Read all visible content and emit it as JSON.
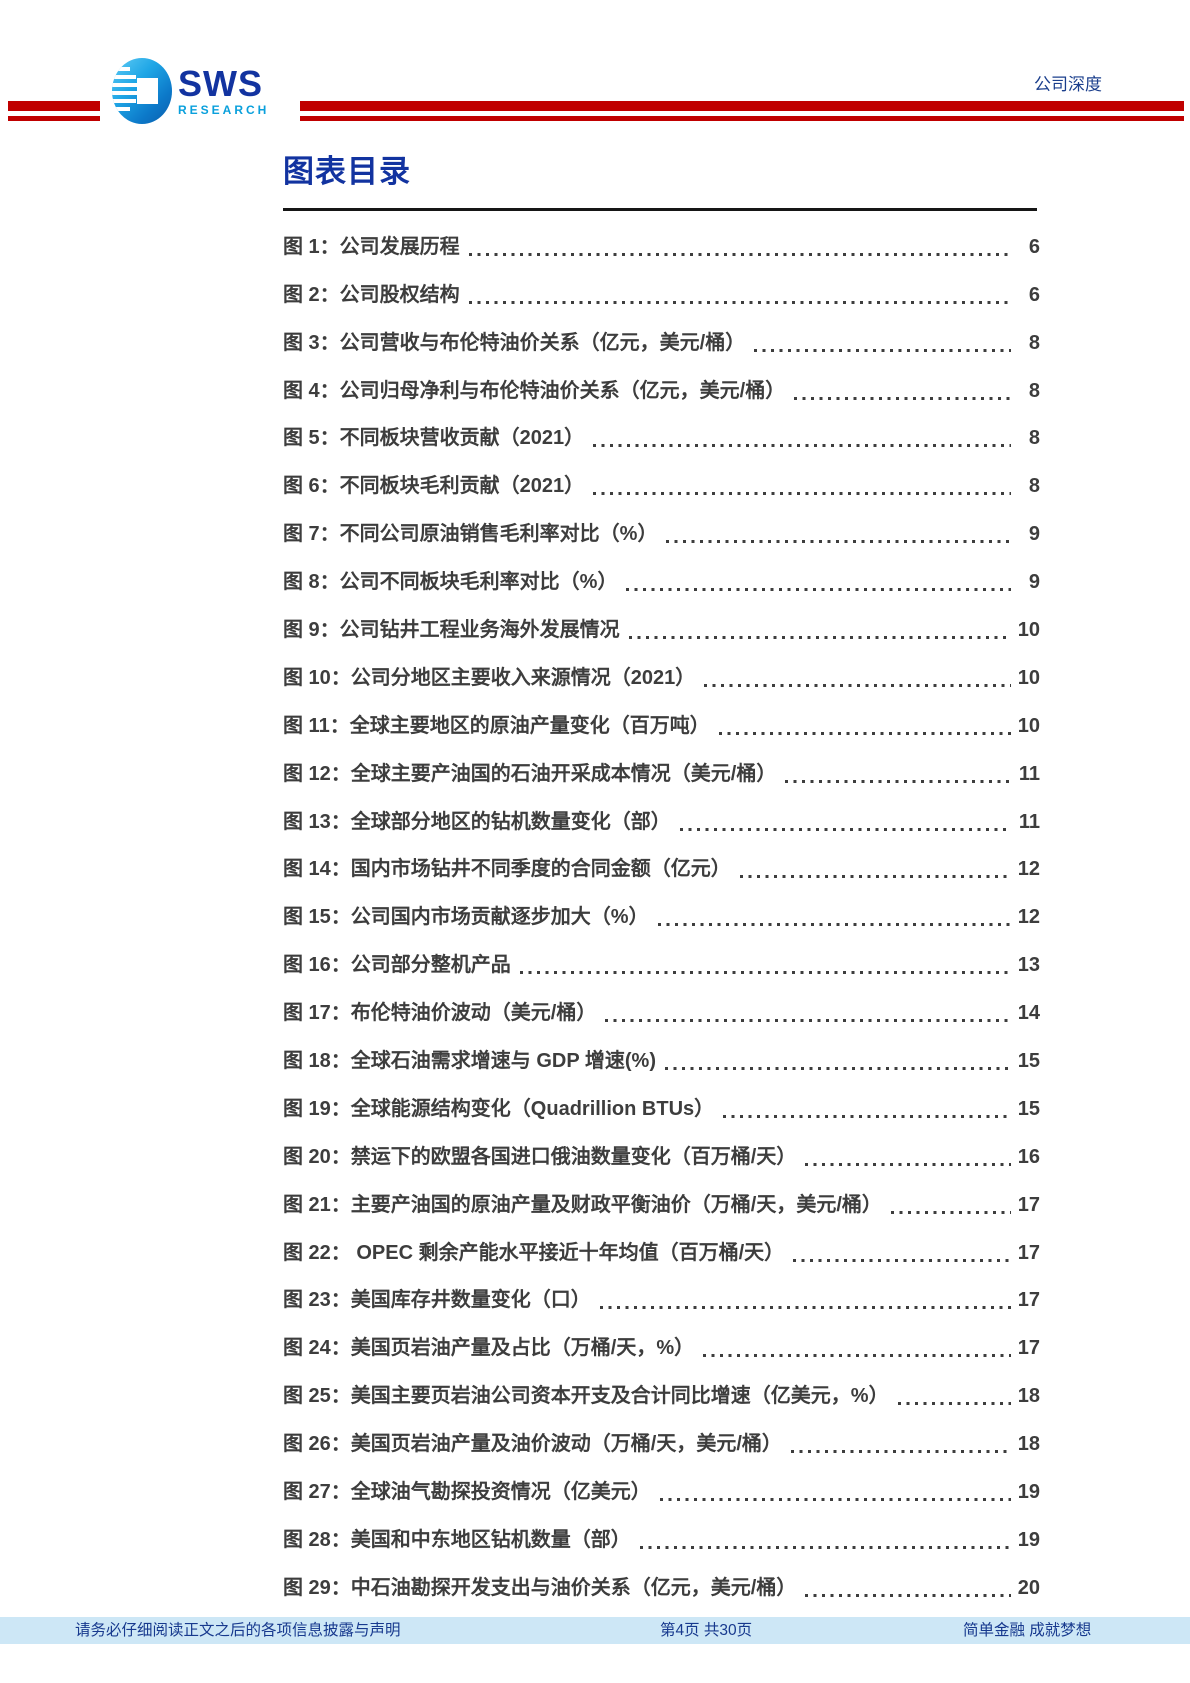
{
  "header": {
    "logo": {
      "name": "SWS",
      "subname": "RESEARCH"
    },
    "category": "公司深度"
  },
  "title": "图表目录",
  "toc": {
    "entries": [
      {
        "label": "图 1：公司发展历程",
        "page": "6"
      },
      {
        "label": "图 2：公司股权结构",
        "page": "6"
      },
      {
        "label": "图 3：公司营收与布伦特油价关系（亿元，美元/桶）",
        "page": "8"
      },
      {
        "label": "图 4：公司归母净利与布伦特油价关系（亿元，美元/桶）",
        "page": "8"
      },
      {
        "label": "图 5：不同板块营收贡献（2021）",
        "page": "8"
      },
      {
        "label": "图 6：不同板块毛利贡献（2021）",
        "page": "8"
      },
      {
        "label": "图 7：不同公司原油销售毛利率对比（%）",
        "page": "9"
      },
      {
        "label": "图 8：公司不同板块毛利率对比（%）",
        "page": "9"
      },
      {
        "label": "图 9：公司钻井工程业务海外发展情况",
        "page": "10"
      },
      {
        "label": "图 10：公司分地区主要收入来源情况（2021）",
        "page": "10"
      },
      {
        "label": "图 11：全球主要地区的原油产量变化（百万吨）",
        "page": "10"
      },
      {
        "label": "图 12：全球主要产油国的石油开采成本情况（美元/桶）",
        "page": "11"
      },
      {
        "label": "图 13：全球部分地区的钻机数量变化（部）",
        "page": "11"
      },
      {
        "label": "图 14：国内市场钻井不同季度的合同金额（亿元）",
        "page": "12"
      },
      {
        "label": "图 15：公司国内市场贡献逐步加大（%）",
        "page": "12"
      },
      {
        "label": "图 16：公司部分整机产品",
        "page": "13"
      },
      {
        "label": "图 17：布伦特油价波动（美元/桶）",
        "page": "14"
      },
      {
        "label": "图 18：全球石油需求增速与 GDP 增速(%)",
        "page": "15"
      },
      {
        "label": "图 19：全球能源结构变化（Quadrillion BTUs）",
        "page": "15"
      },
      {
        "label": "图 20：禁运下的欧盟各国进口俄油数量变化（百万桶/天）",
        "page": "16"
      },
      {
        "label": "图 21：主要产油国的原油产量及财政平衡油价（万桶/天，美元/桶）",
        "page": "17"
      },
      {
        "label": "图 22： OPEC 剩余产能水平接近十年均值（百万桶/天）",
        "page": "17"
      },
      {
        "label": "图 23：美国库存井数量变化（口）",
        "page": "17"
      },
      {
        "label": "图 24：美国页岩油产量及占比（万桶/天，%）",
        "page": "17"
      },
      {
        "label": "图 25：美国主要页岩油公司资本开支及合计同比增速（亿美元，%）",
        "page": "18"
      },
      {
        "label": "图 26：美国页岩油产量及油价波动（万桶/天，美元/桶）",
        "page": "18"
      },
      {
        "label": "图 27：全球油气勘探投资情况（亿美元）",
        "page": "19"
      },
      {
        "label": "图 28：美国和中东地区钻机数量（部）",
        "page": "19"
      },
      {
        "label": "图 29：中石油勘探开发支出与油价关系（亿元，美元/桶）",
        "page": "20"
      }
    ]
  },
  "footer": {
    "disclaimer": "请务必仔细阅读正文之后的各项信息披露与声明",
    "page_info": "第4页 共30页",
    "slogan": "简单金融 成就梦想"
  },
  "colors": {
    "accent_red": "#C00000",
    "brand_blue": "#1233A0",
    "research_cyan": "#0AA0DC",
    "toc_text": "#3D3D3D",
    "footer_bg": "#CDE7F6",
    "footer_text": "#17398E"
  }
}
